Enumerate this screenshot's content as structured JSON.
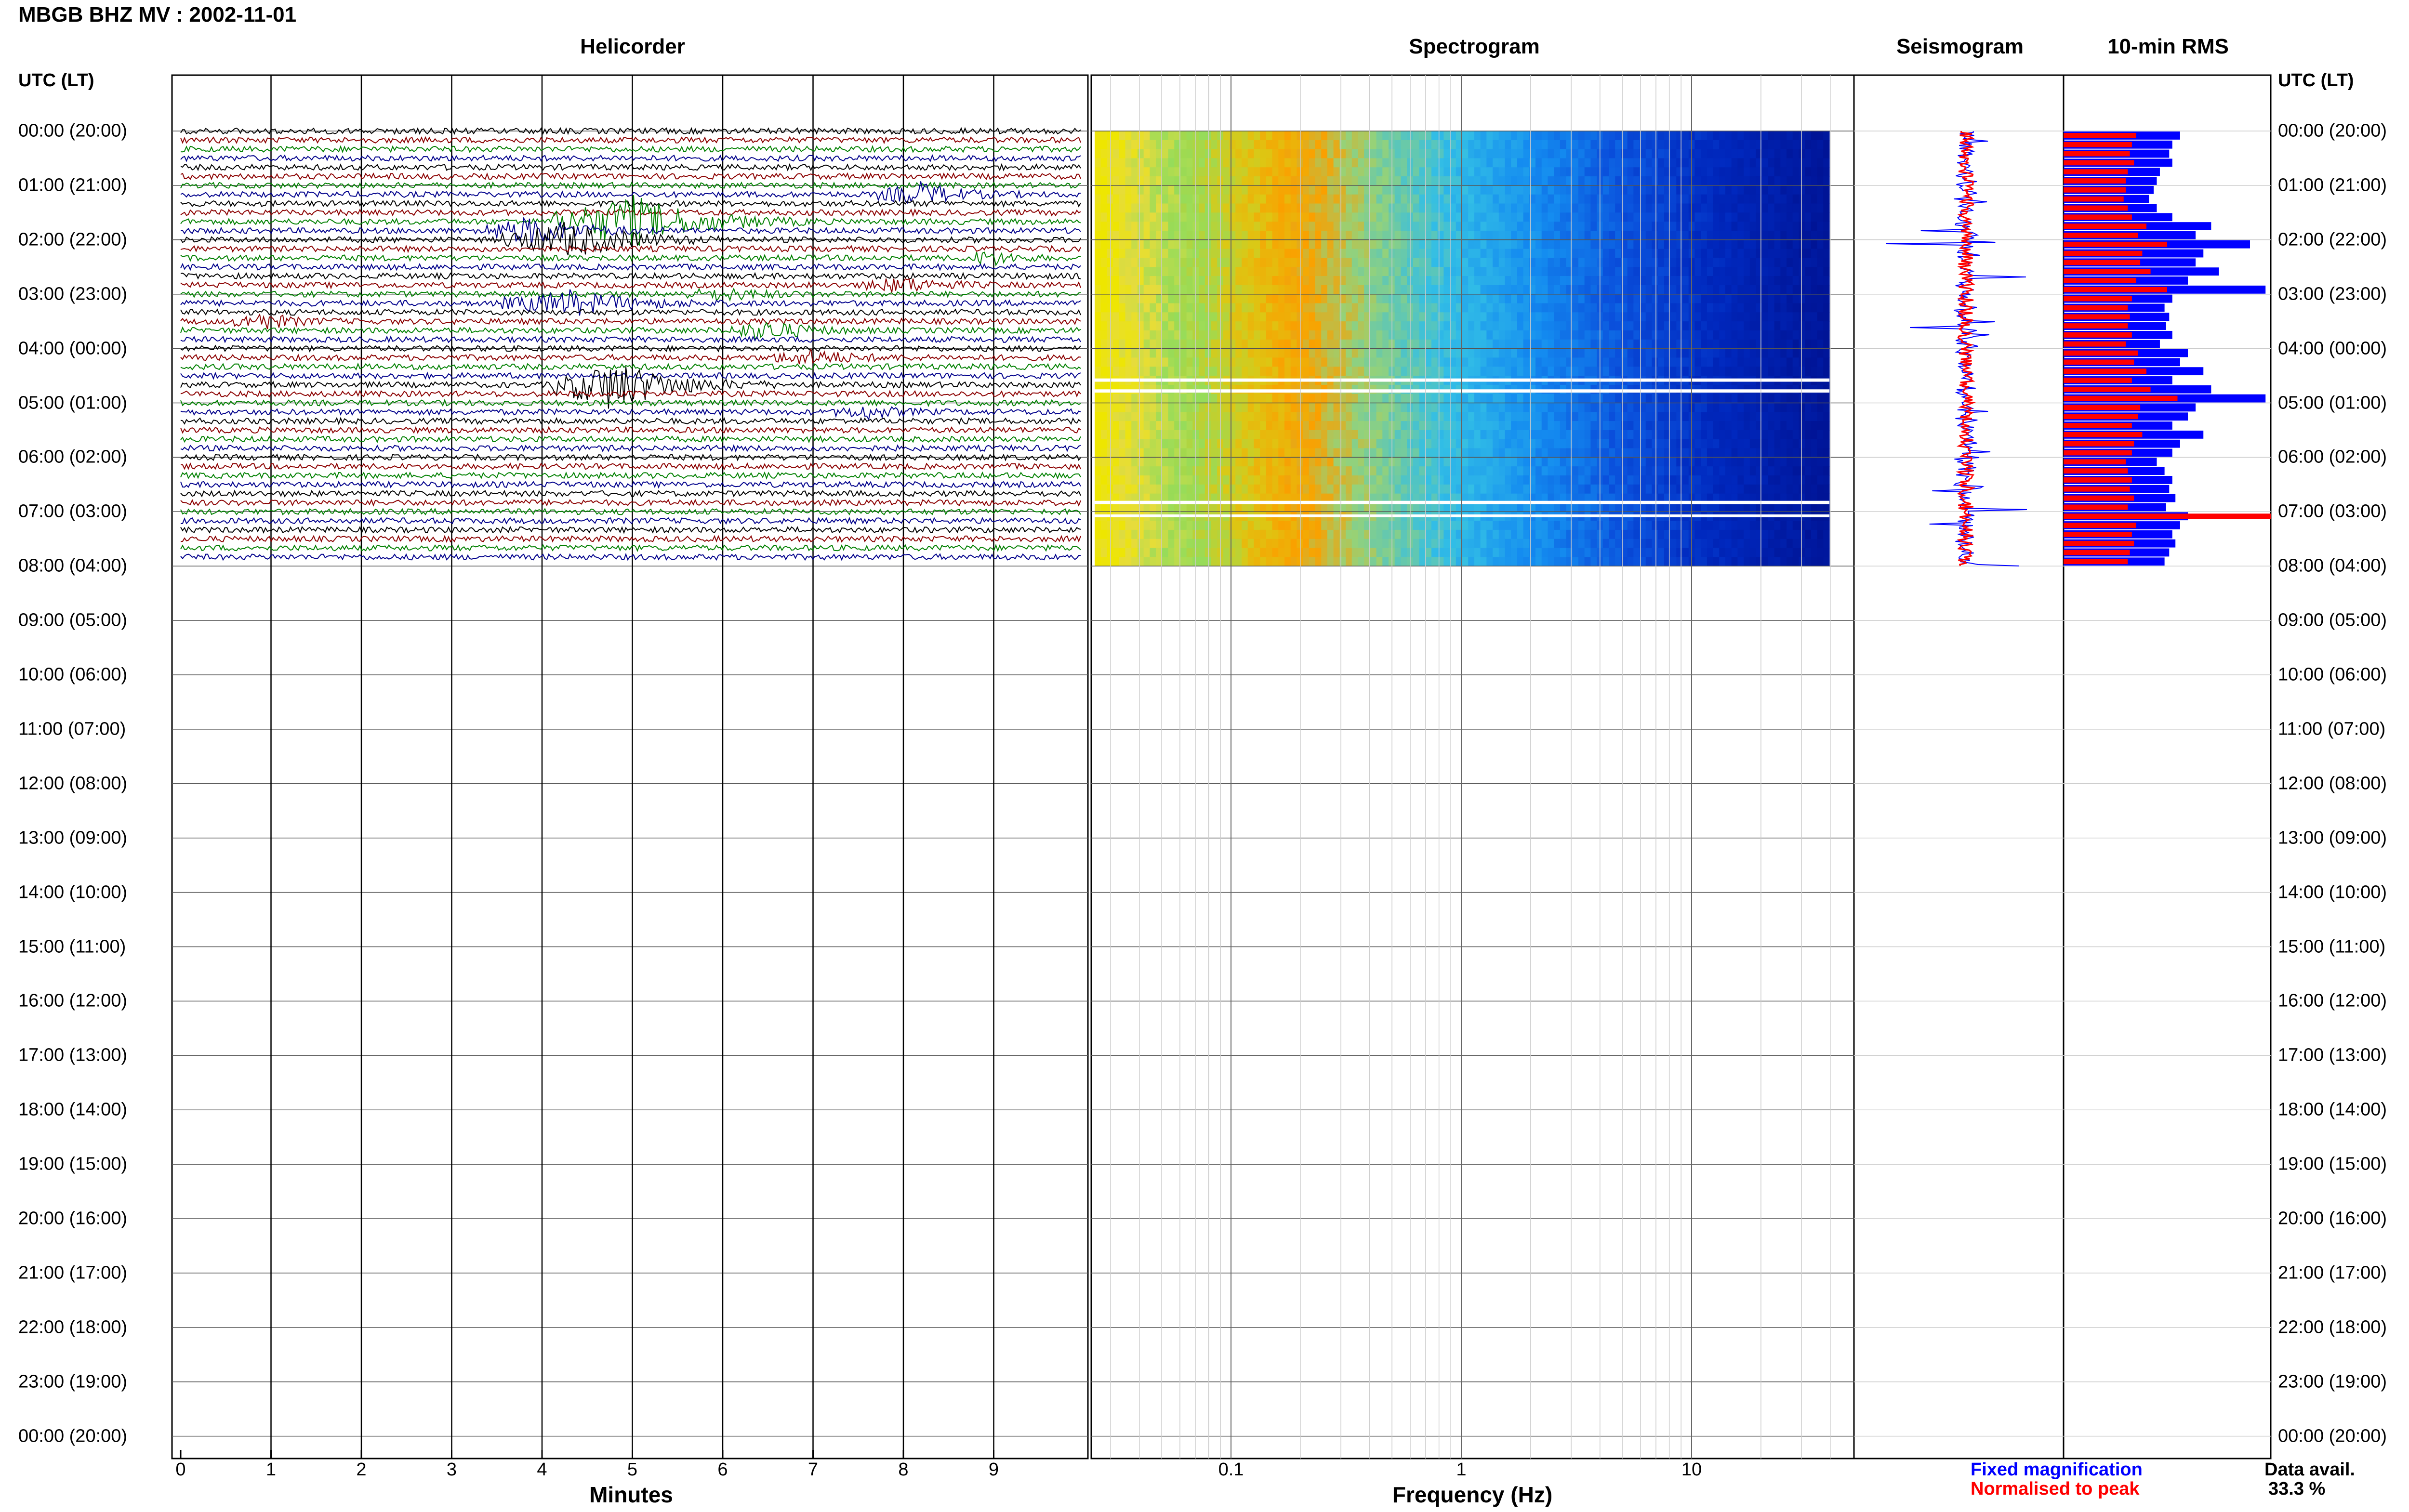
{
  "station_title": "MBGB BHZ MV : 2002-11-01",
  "panels": {
    "helicorder": "Helicorder",
    "spectrogram": "Spectrogram",
    "seismogram": "Seismogram",
    "rms": "10-min RMS"
  },
  "utc_label": "UTC (LT)",
  "hours": [
    "00:00 (20:00)",
    "01:00 (21:00)",
    "02:00 (22:00)",
    "03:00 (23:00)",
    "04:00 (00:00)",
    "05:00 (01:00)",
    "06:00 (02:00)",
    "07:00 (03:00)",
    "08:00 (04:00)",
    "09:00 (05:00)",
    "10:00 (06:00)",
    "11:00 (07:00)",
    "12:00 (08:00)",
    "13:00 (09:00)",
    "14:00 (10:00)",
    "15:00 (11:00)",
    "16:00 (12:00)",
    "17:00 (13:00)",
    "18:00 (14:00)",
    "19:00 (15:00)",
    "20:00 (16:00)",
    "21:00 (17:00)",
    "22:00 (18:00)",
    "23:00 (19:00)",
    "00:00 (20:00)"
  ],
  "helicorder_x": {
    "label": "Minutes",
    "ticks": [
      "0",
      "1",
      "2",
      "3",
      "4",
      "5",
      "6",
      "7",
      "8",
      "9"
    ]
  },
  "spectrogram_x": {
    "label": "Frequency (Hz)",
    "ticks": [
      "0.1",
      "1",
      "10"
    ]
  },
  "legend": {
    "fixed": "Fixed magnification",
    "normalised": "Normalised to peak"
  },
  "data_avail": {
    "label": "Data avail.",
    "value": "33.3 %"
  },
  "colors": {
    "trace_cycle": [
      "#000000",
      "#8b0000",
      "#008000",
      "#00008b"
    ],
    "rms_fixed": "#0000ff",
    "rms_normalised": "#ff0000"
  },
  "chart_data": {
    "type": "heatmap",
    "title": "MBGB BHZ MV : 2002-11-01",
    "time_axis": {
      "label": "UTC (LT)",
      "start": "00:00",
      "end": "24:00",
      "data_until": "08:00"
    },
    "helicorder": {
      "xlabel": "Minutes",
      "xlim": [
        0,
        10
      ],
      "rows_per_hour": 6
    },
    "spectrogram": {
      "xlabel": "Frequency (Hz)",
      "xscale": "log",
      "xlim": [
        0.03,
        40
      ],
      "colormap": "jet"
    },
    "rms_10min": {
      "blue_fixed": [
        0.75,
        0.7,
        0.68,
        0.7,
        0.62,
        0.6,
        0.58,
        0.55,
        0.6,
        0.7,
        0.95,
        0.85,
        1.2,
        0.9,
        0.85,
        1.0,
        0.8,
        1.3,
        0.7,
        0.65,
        0.68,
        0.66,
        0.7,
        0.62,
        0.8,
        0.75,
        0.9,
        0.7,
        0.95,
        1.3,
        0.85,
        0.8,
        0.7,
        0.9,
        0.75,
        0.7,
        0.6,
        0.65,
        0.7,
        0.68,
        0.72,
        0.66,
        0.8,
        0.75,
        0.7,
        0.72,
        0.68,
        0.65
      ],
      "red_normalised": [
        0.35,
        0.33,
        0.32,
        0.34,
        0.31,
        0.3,
        0.3,
        0.29,
        0.31,
        0.33,
        0.4,
        0.36,
        0.5,
        0.38,
        0.37,
        0.42,
        0.35,
        0.5,
        0.33,
        0.31,
        0.32,
        0.31,
        0.33,
        0.3,
        0.36,
        0.34,
        0.4,
        0.33,
        0.42,
        0.55,
        0.37,
        0.36,
        0.33,
        0.38,
        0.34,
        0.33,
        0.3,
        0.31,
        0.33,
        0.32,
        0.34,
        0.31,
        1.0,
        0.35,
        0.33,
        0.34,
        0.32,
        0.31
      ]
    }
  }
}
